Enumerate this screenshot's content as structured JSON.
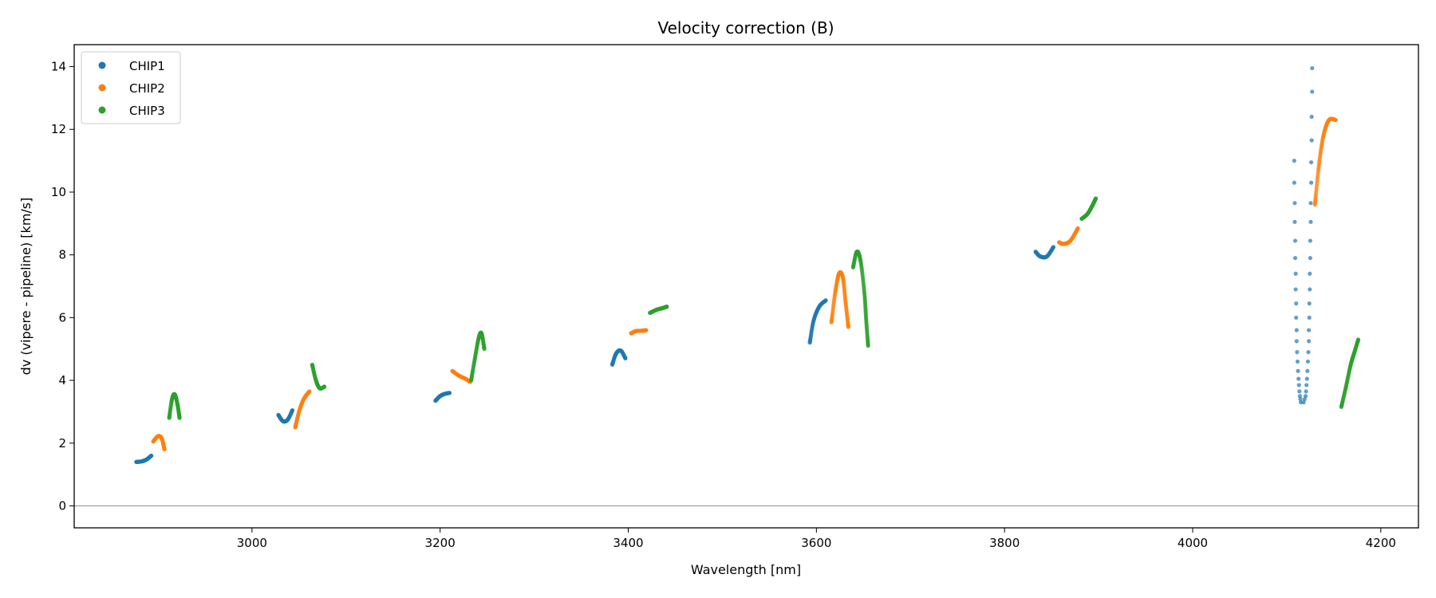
{
  "chart_data": {
    "type": "scatter",
    "title": "Velocity correction (B)",
    "xlabel": "Wavelength [nm]",
    "ylabel": "dv (vipere - pipeline) [km/s]",
    "xlim": [
      2811,
      4240
    ],
    "ylim": [
      -0.7,
      14.7
    ],
    "xticks": [
      3000,
      3200,
      3400,
      3600,
      3800,
      4000,
      4200
    ],
    "yticks": [
      0,
      2,
      4,
      6,
      8,
      10,
      12,
      14
    ],
    "grid": false,
    "reference_line_y": 0,
    "legend": {
      "placement": "top-left",
      "entries": [
        "CHIP1",
        "CHIP2",
        "CHIP3"
      ]
    },
    "colors": {
      "CHIP1": "#1f77b4",
      "CHIP2": "#ff7f0e",
      "CHIP3": "#2ca02c",
      "zero_line": "#808080"
    },
    "series": [
      {
        "name": "CHIP1",
        "segments": [
          {
            "points": [
              [
                2877,
                1.4
              ],
              [
                2883,
                1.42
              ],
              [
                2888,
                1.48
              ],
              [
                2893,
                1.6
              ]
            ]
          },
          {
            "points": [
              [
                3028,
                2.9
              ],
              [
                3033,
                2.7
              ],
              [
                3038,
                2.75
              ],
              [
                3043,
                3.05
              ]
            ]
          },
          {
            "points": [
              [
                3195,
                3.35
              ],
              [
                3200,
                3.5
              ],
              [
                3205,
                3.57
              ],
              [
                3210,
                3.6
              ]
            ]
          },
          {
            "points": [
              [
                3383,
                4.5
              ],
              [
                3387,
                4.85
              ],
              [
                3392,
                4.95
              ],
              [
                3397,
                4.7
              ]
            ]
          },
          {
            "points": [
              [
                3593,
                5.2
              ],
              [
                3597,
                5.9
              ],
              [
                3603,
                6.35
              ],
              [
                3610,
                6.55
              ]
            ]
          },
          {
            "points": [
              [
                3833,
                8.1
              ],
              [
                3838,
                7.95
              ],
              [
                3845,
                7.95
              ],
              [
                3852,
                8.25
              ]
            ]
          },
          {
            "sparse": true,
            "points": [
              [
                4108,
                11.0
              ],
              [
                4108,
                10.3
              ],
              [
                4108.5,
                9.65
              ],
              [
                4108.5,
                9.05
              ],
              [
                4109,
                8.45
              ],
              [
                4109,
                7.9
              ],
              [
                4109.5,
                7.4
              ],
              [
                4109.5,
                6.9
              ],
              [
                4110,
                6.45
              ],
              [
                4110,
                6.0
              ],
              [
                4110.5,
                5.6
              ],
              [
                4110.5,
                5.25
              ],
              [
                4111,
                4.9
              ],
              [
                4111.5,
                4.6
              ],
              [
                4112,
                4.3
              ],
              [
                4112.5,
                4.05
              ],
              [
                4113,
                3.85
              ],
              [
                4113.5,
                3.65
              ],
              [
                4114,
                3.5
              ],
              [
                4114.5,
                3.4
              ],
              [
                4115,
                3.3
              ],
              [
                4127,
                13.95
              ],
              [
                4127,
                13.2
              ],
              [
                4126.5,
                12.4
              ],
              [
                4126.5,
                11.65
              ],
              [
                4126,
                10.95
              ],
              [
                4126,
                10.3
              ],
              [
                4125.5,
                9.65
              ],
              [
                4125.5,
                9.05
              ],
              [
                4125,
                8.45
              ],
              [
                4125,
                7.9
              ],
              [
                4124.5,
                7.4
              ],
              [
                4124.5,
                6.9
              ],
              [
                4124,
                6.45
              ],
              [
                4124,
                6.0
              ],
              [
                4123.5,
                5.6
              ],
              [
                4123.5,
                5.25
              ],
              [
                4123,
                4.9
              ],
              [
                4122.5,
                4.6
              ],
              [
                4122,
                4.3
              ],
              [
                4121.5,
                4.05
              ],
              [
                4121,
                3.85
              ],
              [
                4120.5,
                3.65
              ],
              [
                4120,
                3.5
              ],
              [
                4119,
                3.4
              ],
              [
                4118,
                3.3
              ]
            ]
          }
        ]
      },
      {
        "name": "CHIP2",
        "segments": [
          {
            "points": [
              [
                2895,
                2.05
              ],
              [
                2900,
                2.22
              ],
              [
                2904,
                2.15
              ],
              [
                2907,
                1.8
              ]
            ]
          },
          {
            "points": [
              [
                3046,
                2.5
              ],
              [
                3050,
                3.0
              ],
              [
                3055,
                3.4
              ],
              [
                3061,
                3.65
              ]
            ]
          },
          {
            "points": [
              [
                3213,
                4.3
              ],
              [
                3220,
                4.15
              ],
              [
                3227,
                4.05
              ],
              [
                3232,
                3.95
              ]
            ]
          },
          {
            "points": [
              [
                3403,
                5.5
              ],
              [
                3408,
                5.57
              ],
              [
                3414,
                5.58
              ],
              [
                3419,
                5.6
              ]
            ]
          },
          {
            "points": [
              [
                3616,
                5.85
              ],
              [
                3620,
                6.8
              ],
              [
                3624,
                7.4
              ],
              [
                3628,
                7.3
              ],
              [
                3631,
                6.5
              ],
              [
                3634,
                5.7
              ]
            ]
          },
          {
            "points": [
              [
                3858,
                8.4
              ],
              [
                3863,
                8.35
              ],
              [
                3870,
                8.45
              ],
              [
                3878,
                8.85
              ]
            ]
          },
          {
            "points": [
              [
                4130,
                9.6
              ],
              [
                4134,
                10.8
              ],
              [
                4139,
                11.8
              ],
              [
                4145,
                12.3
              ],
              [
                4152,
                12.3
              ]
            ]
          }
        ]
      },
      {
        "name": "CHIP3",
        "segments": [
          {
            "points": [
              [
                2912,
                2.8
              ],
              [
                2915,
                3.4
              ],
              [
                2918,
                3.55
              ],
              [
                2921,
                3.2
              ],
              [
                2923,
                2.8
              ]
            ]
          },
          {
            "points": [
              [
                3064,
                4.5
              ],
              [
                3068,
                4.0
              ],
              [
                3072,
                3.75
              ],
              [
                3077,
                3.8
              ]
            ]
          },
          {
            "points": [
              [
                3233,
                4.0
              ],
              [
                3237,
                4.7
              ],
              [
                3241,
                5.35
              ],
              [
                3244,
                5.5
              ],
              [
                3247,
                5.0
              ]
            ]
          },
          {
            "points": [
              [
                3423,
                6.15
              ],
              [
                3430,
                6.25
              ],
              [
                3436,
                6.3
              ],
              [
                3441,
                6.35
              ]
            ]
          },
          {
            "points": [
              [
                3639,
                7.6
              ],
              [
                3643,
                8.1
              ],
              [
                3647,
                7.8
              ],
              [
                3651,
                6.8
              ],
              [
                3653,
                5.9
              ],
              [
                3655,
                5.1
              ]
            ]
          },
          {
            "points": [
              [
                3882,
                9.15
              ],
              [
                3888,
                9.3
              ],
              [
                3893,
                9.55
              ],
              [
                3897,
                9.8
              ]
            ]
          },
          {
            "points": [
              [
                4158,
                3.15
              ],
              [
                4163,
                3.8
              ],
              [
                4168,
                4.5
              ],
              [
                4172,
                4.9
              ],
              [
                4176,
                5.3
              ]
            ]
          }
        ]
      }
    ]
  }
}
